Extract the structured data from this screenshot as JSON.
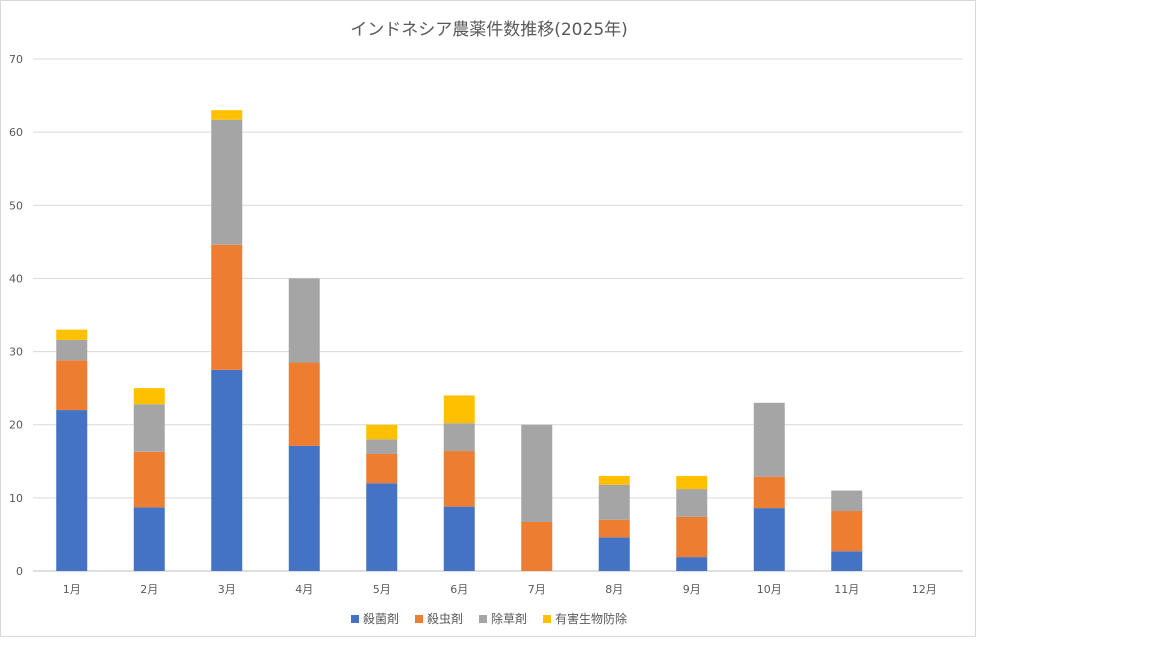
{
  "chart_data": {
    "type": "bar",
    "stacked": true,
    "title": "インドネシア農薬件数推移(2025年)",
    "categories": [
      "1月",
      "2月",
      "3月",
      "4月",
      "5月",
      "6月",
      "7月",
      "8月",
      "9月",
      "10月",
      "11月",
      "12月"
    ],
    "series": [
      {
        "name": "殺菌剤",
        "color": "#4472C4",
        "values": [
          22,
          8.7,
          27.5,
          17.1,
          12,
          8.8,
          0,
          4.6,
          1.9,
          8.6,
          2.7,
          0
        ]
      },
      {
        "name": "殺虫剤",
        "color": "#ED7D31",
        "values": [
          6.8,
          7.6,
          17.1,
          11.4,
          4,
          7.6,
          6.7,
          2.4,
          5.5,
          4.3,
          5.5,
          0
        ]
      },
      {
        "name": "除草剤",
        "color": "#A5A5A5",
        "values": [
          2.8,
          6.5,
          17.1,
          11.5,
          2,
          3.8,
          13.3,
          4.8,
          3.8,
          10.1,
          2.8,
          0
        ]
      },
      {
        "name": "有害生物防除",
        "color": "#FFC000",
        "values": [
          1.4,
          2.2,
          1.3,
          0,
          2,
          3.8,
          0,
          1.2,
          1.8,
          0,
          0,
          0
        ]
      }
    ],
    "ylim": [
      0,
      70
    ],
    "yticks": [
      0,
      10,
      20,
      30,
      40,
      50,
      60,
      70
    ],
    "grid": true,
    "legend": "bottom",
    "xlabel": "",
    "ylabel": ""
  }
}
